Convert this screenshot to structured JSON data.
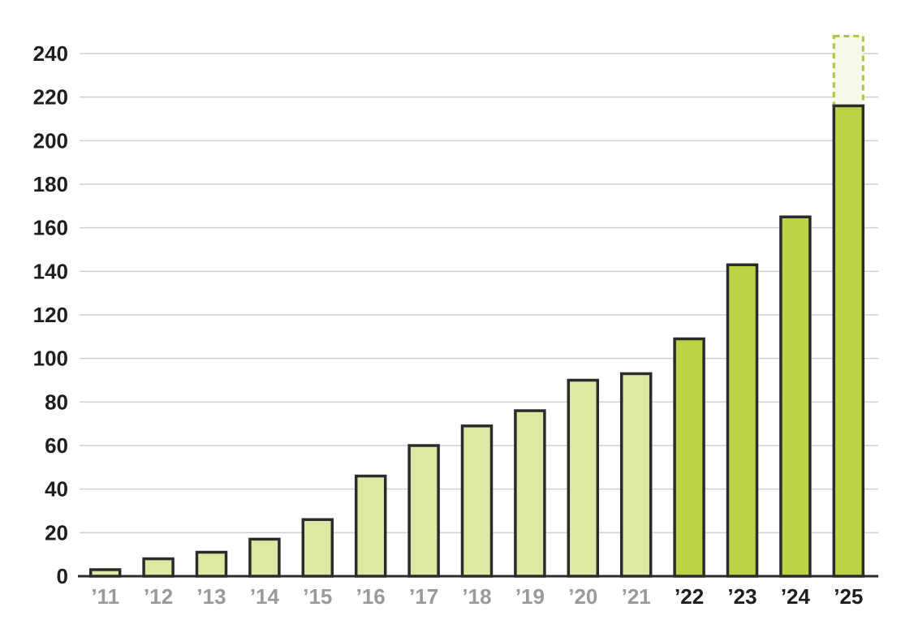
{
  "chart_data": {
    "type": "bar",
    "title": "",
    "xlabel": "",
    "ylabel": "",
    "ylim": [
      0,
      240
    ],
    "yticks": [
      0,
      20,
      40,
      60,
      80,
      100,
      120,
      140,
      160,
      180,
      200,
      220,
      240
    ],
    "grid": true,
    "categories": [
      "’11",
      "’12",
      "’13",
      "’14",
      "’15",
      "’16",
      "’17",
      "’18",
      "’19",
      "’20",
      "’21",
      "’22",
      "’23",
      "’24",
      "’25"
    ],
    "values": [
      3,
      8,
      11,
      17,
      26,
      46,
      60,
      69,
      76,
      90,
      93,
      109,
      143,
      165,
      216
    ],
    "projected_total": [
      null,
      null,
      null,
      null,
      null,
      null,
      null,
      null,
      null,
      null,
      null,
      null,
      null,
      null,
      248
    ],
    "highlight_from_index": 11,
    "colors": {
      "bar_light": "#dde9a3",
      "bar_dark": "#bbd444",
      "bar_outline": "#2b2b2b",
      "projected_fill": "#f6f9e9",
      "projected_outline": "#a8c83a",
      "grid": "#cfcfcf",
      "tick_muted": "#9a9a9a",
      "tick_strong": "#1f1f1f"
    }
  }
}
